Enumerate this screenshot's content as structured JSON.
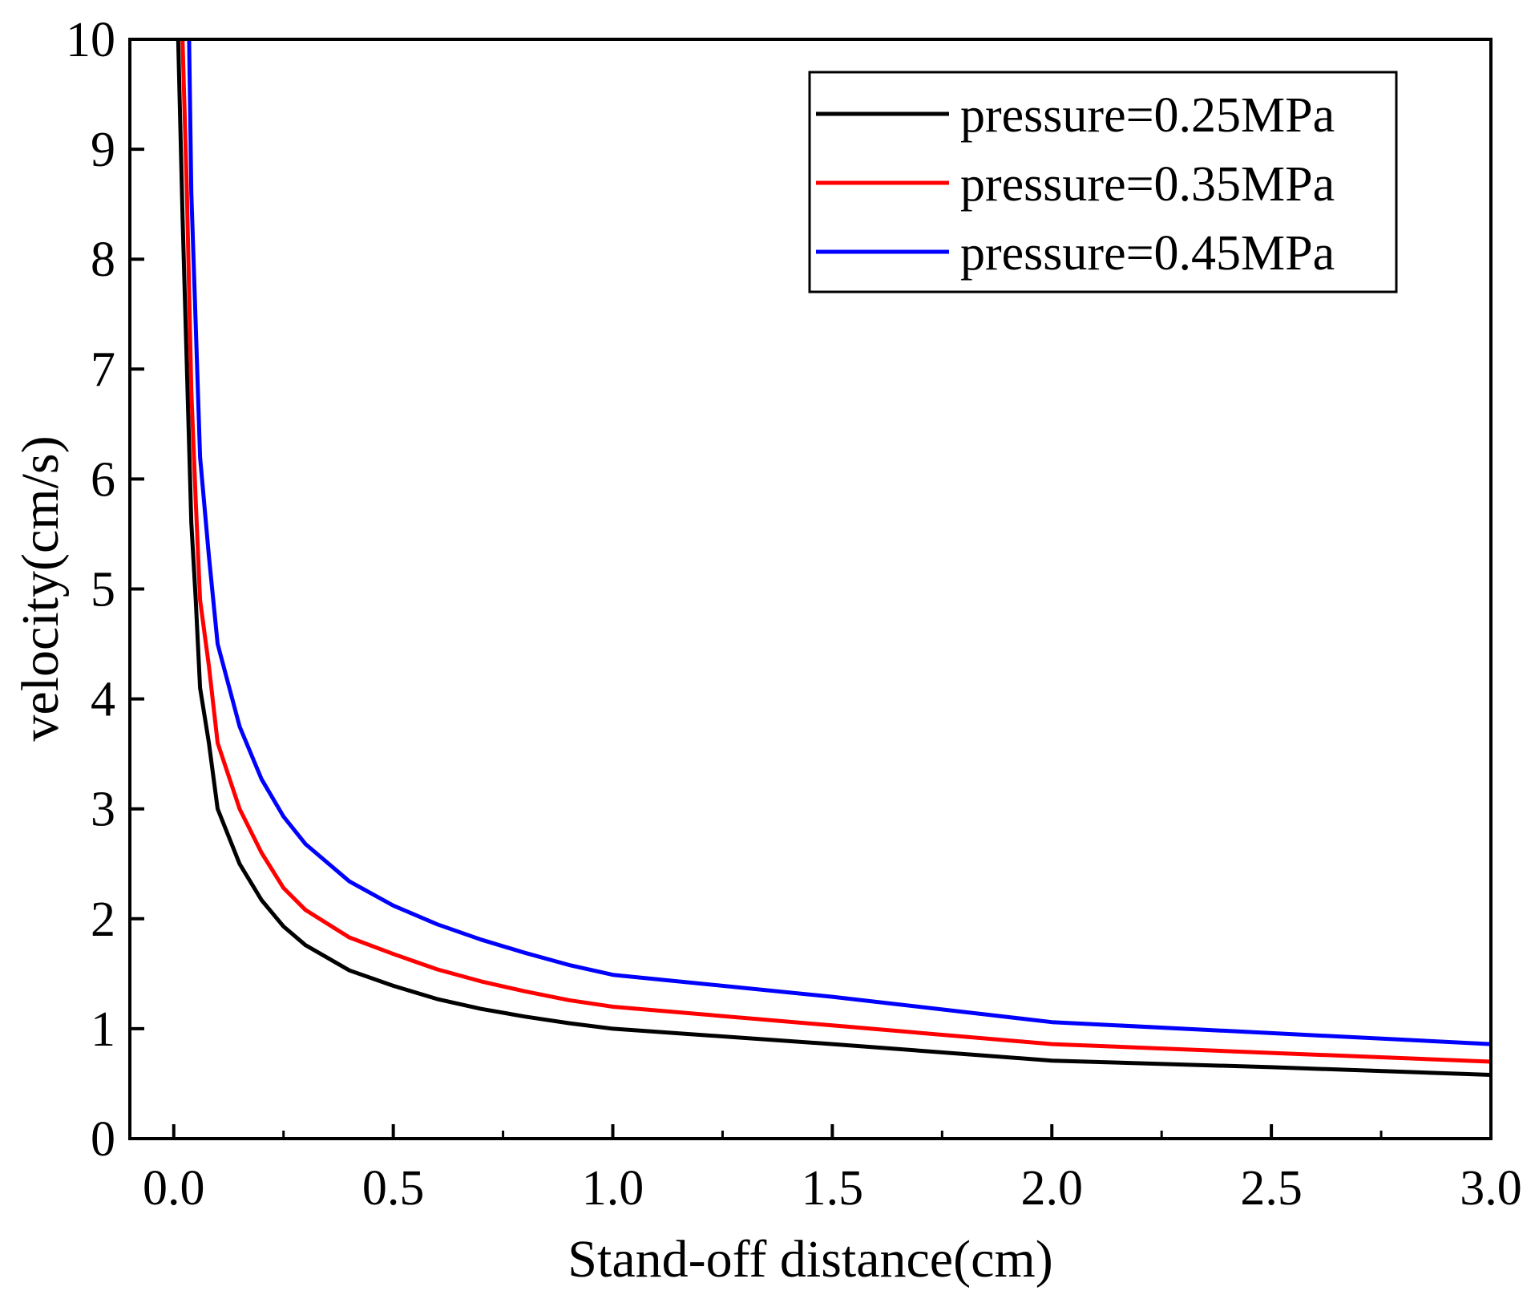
{
  "chart_data": {
    "type": "line",
    "title": "",
    "xlabel": "Stand-off distance(cm)",
    "ylabel": "velocity(cm/s)",
    "xlim": [
      -0.1,
      3.0
    ],
    "ylim": [
      0,
      10
    ],
    "grid": false,
    "legend_position": "top-right",
    "x_ticks": [
      0.0,
      0.5,
      1.0,
      1.5,
      2.0,
      2.5,
      3.0
    ],
    "x_tick_labels": [
      "0.0",
      "0.5",
      "1.0",
      "1.5",
      "2.0",
      "2.5",
      "3.0"
    ],
    "y_ticks": [
      0,
      1,
      2,
      3,
      4,
      5,
      6,
      7,
      8,
      9,
      10
    ],
    "y_tick_labels": [
      "0",
      "1",
      "2",
      "3",
      "4",
      "5",
      "6",
      "7",
      "8",
      "9",
      "10"
    ],
    "series": [
      {
        "name": "pressure=0.25MPa",
        "color": "#000000",
        "x": [
          0.01,
          0.02,
          0.03,
          0.04,
          0.05,
          0.06,
          0.08,
          0.1,
          0.15,
          0.2,
          0.25,
          0.3,
          0.4,
          0.5,
          0.6,
          0.7,
          0.8,
          0.9,
          1.0,
          1.5,
          2.0,
          2.5,
          3.0
        ],
        "y": [
          10.0,
          8.4,
          7.0,
          5.6,
          4.9,
          4.1,
          3.6,
          3.0,
          2.5,
          2.17,
          1.93,
          1.76,
          1.53,
          1.39,
          1.27,
          1.18,
          1.11,
          1.05,
          1.0,
          0.86,
          0.71,
          0.65,
          0.58
        ]
      },
      {
        "name": "pressure=0.35MPa",
        "color": "#ff0000",
        "x": [
          0.02,
          0.03,
          0.04,
          0.05,
          0.06,
          0.08,
          0.1,
          0.15,
          0.2,
          0.25,
          0.3,
          0.4,
          0.5,
          0.6,
          0.7,
          0.8,
          0.9,
          1.0,
          1.5,
          2.0,
          2.5,
          3.0
        ],
        "y": [
          10.0,
          8.6,
          6.8,
          5.8,
          4.9,
          4.3,
          3.6,
          3.0,
          2.6,
          2.28,
          2.08,
          1.83,
          1.68,
          1.54,
          1.43,
          1.34,
          1.26,
          1.2,
          1.03,
          0.86,
          0.78,
          0.7
        ]
      },
      {
        "name": "pressure=0.45MPa",
        "color": "#0000ff",
        "x": [
          0.035,
          0.04,
          0.05,
          0.06,
          0.08,
          0.1,
          0.15,
          0.2,
          0.25,
          0.3,
          0.4,
          0.5,
          0.6,
          0.7,
          0.8,
          0.9,
          1.0,
          1.5,
          2.0,
          2.5,
          3.0
        ],
        "y": [
          10.0,
          8.6,
          7.4,
          6.2,
          5.3,
          4.5,
          3.75,
          3.27,
          2.93,
          2.68,
          2.34,
          2.12,
          1.95,
          1.81,
          1.69,
          1.58,
          1.49,
          1.29,
          1.06,
          0.96,
          0.86
        ]
      }
    ]
  }
}
